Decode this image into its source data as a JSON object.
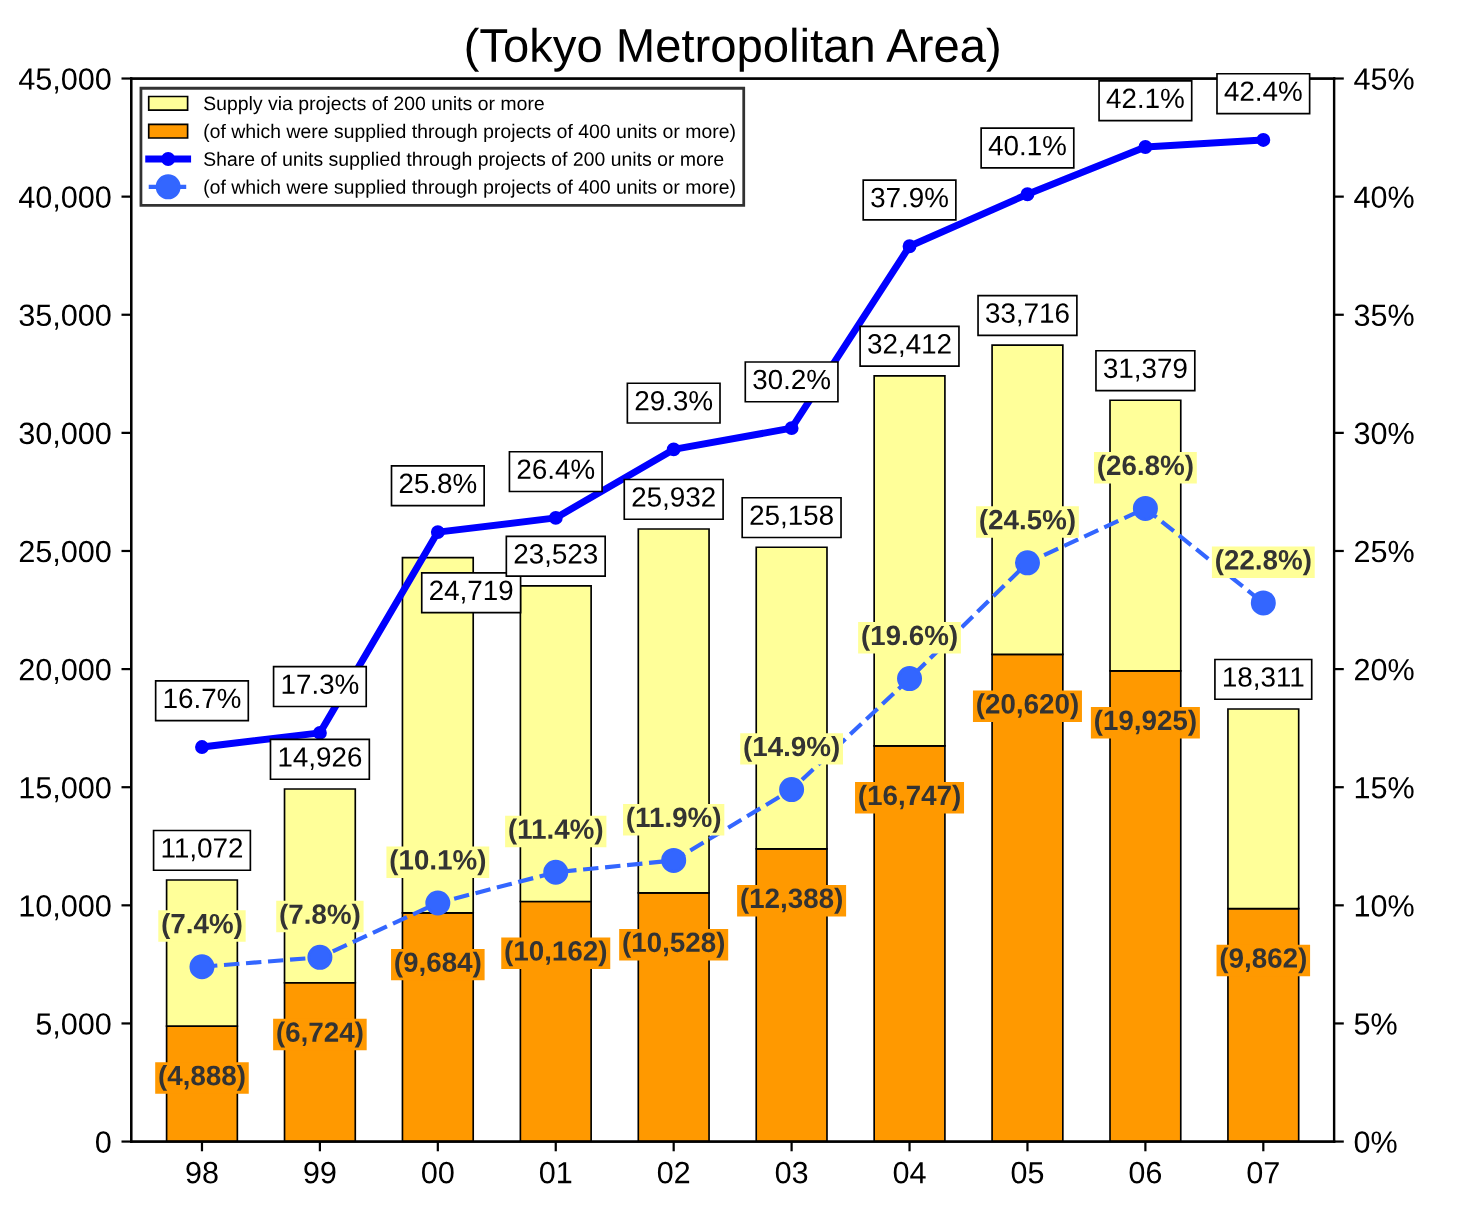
{
  "chart_data": {
    "type": "bar",
    "title": "(Tokyo Metropolitan Area)",
    "stacked": true,
    "categories": [
      "98",
      "99",
      "00",
      "01",
      "02",
      "03",
      "04",
      "05",
      "06",
      "07"
    ],
    "series": [
      {
        "name": "(of which were supplied through projects of 400 units or more)",
        "color": "#ff9900",
        "values": [
          4888,
          6724,
          9684,
          10162,
          10528,
          12388,
          16747,
          20620,
          19925,
          9862
        ],
        "value_labels": [
          "(4,888)",
          "(6,724)",
          "(9,684)",
          "(10,162)",
          "(10,528)",
          "(12,388)",
          "(16,747)",
          "(20,620)",
          "(19,925)",
          "(9,862)"
        ]
      },
      {
        "name": "Supply via projects of 200 units or more",
        "color": "#ffff99",
        "values": [
          6184,
          8202,
          15035,
          13361,
          15404,
          12770,
          15665,
          13096,
          11454,
          8449
        ]
      },
      {
        "name": "Share of units supplied through projects of 200 units or more",
        "type": "line",
        "axis": "y2",
        "color": "#0000ff",
        "marker": "circle",
        "line_style": "solid",
        "values": [
          16.7,
          17.3,
          25.8,
          26.4,
          29.3,
          30.2,
          37.9,
          40.1,
          42.1,
          42.4
        ],
        "value_labels": [
          "16.7%",
          "17.3%",
          "25.8%",
          "26.4%",
          "29.3%",
          "30.2%",
          "37.9%",
          "40.1%",
          "42.1%",
          "42.4%"
        ]
      },
      {
        "name": "(of which were supplied through projects of 400 units or more)",
        "type": "line",
        "axis": "y2",
        "color": "#3366ff",
        "marker": "circle",
        "line_style": "dashed",
        "values": [
          7.4,
          7.8,
          10.1,
          11.4,
          11.9,
          14.9,
          19.6,
          24.5,
          26.8,
          22.8
        ],
        "value_labels": [
          "(7.4%)",
          "(7.8%)",
          "(10.1%)",
          "(11.4%)",
          "(11.9%)",
          "(14.9%)",
          "(19.6%)",
          "(24.5%)",
          "(26.8%)",
          "(22.8%)"
        ]
      }
    ],
    "totals": [
      "11,072",
      "14,926",
      "24,719",
      "23,523",
      "25,932",
      "25,158",
      "32,412",
      "33,716",
      "31,379",
      "18,311"
    ],
    "ylim": [
      0,
      45000
    ],
    "yticks": [
      0,
      {
        "value": 5000,
        "label": "5,000"
      },
      {
        "value": 10000,
        "label": "10,000"
      },
      {
        "value": 15000,
        "label": "15,000"
      },
      {
        "value": 20000,
        "label": "20,000"
      },
      {
        "value": 25000,
        "label": "25,000"
      },
      {
        "value": 30000,
        "label": "30,000"
      },
      {
        "value": 35000,
        "label": "35,000"
      },
      {
        "value": 40000,
        "label": "40,000"
      },
      {
        "value": 45000,
        "label": "45,000"
      }
    ],
    "y2lim": [
      0,
      45
    ],
    "y2ticks": [
      {
        "value": 0,
        "label": "0%"
      },
      {
        "value": 5,
        "label": "5%"
      },
      {
        "value": 10,
        "label": "10%"
      },
      {
        "value": 15,
        "label": "15%"
      },
      {
        "value": 20,
        "label": "20%"
      },
      {
        "value": 25,
        "label": "25%"
      },
      {
        "value": 30,
        "label": "30%"
      },
      {
        "value": 35,
        "label": "35%"
      },
      {
        "value": 40,
        "label": "40%"
      },
      {
        "value": 45,
        "label": "45%"
      }
    ],
    "legend": "top left",
    "grid": false
  }
}
